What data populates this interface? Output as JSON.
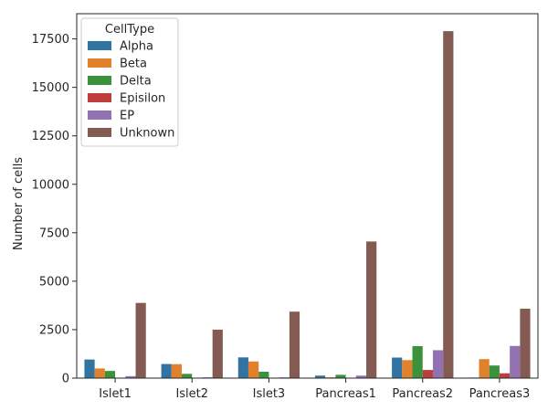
{
  "chart_data": {
    "type": "bar",
    "categories": [
      "Islet1",
      "Islet2",
      "Islet3",
      "Pancreas1",
      "Pancreas2",
      "Pancreas3"
    ],
    "legend_title": "CellType",
    "legend_position": "top-left",
    "xlabel": "",
    "ylabel": "Number of cells",
    "ylim": [
      0,
      18800
    ],
    "yticks": [
      0,
      2500,
      5000,
      7500,
      10000,
      12500,
      15000,
      17500
    ],
    "grid": false,
    "series": [
      {
        "name": "Alpha",
        "color": "#3274a1",
        "values": [
          960,
          730,
          1070,
          130,
          1060,
          30
        ]
      },
      {
        "name": "Beta",
        "color": "#e1812c",
        "values": [
          500,
          720,
          860,
          40,
          930,
          980
        ]
      },
      {
        "name": "Delta",
        "color": "#3a923a",
        "values": [
          370,
          220,
          330,
          170,
          1650,
          650
        ]
      },
      {
        "name": "Episilon",
        "color": "#c03d3e",
        "values": [
          20,
          20,
          20,
          20,
          420,
          250
        ]
      },
      {
        "name": "EP",
        "color": "#9372b2",
        "values": [
          100,
          40,
          40,
          130,
          1440,
          1660
        ]
      },
      {
        "name": "Unknown",
        "color": "#845b53",
        "values": [
          3880,
          2500,
          3430,
          7050,
          17900,
          3580
        ]
      }
    ]
  }
}
